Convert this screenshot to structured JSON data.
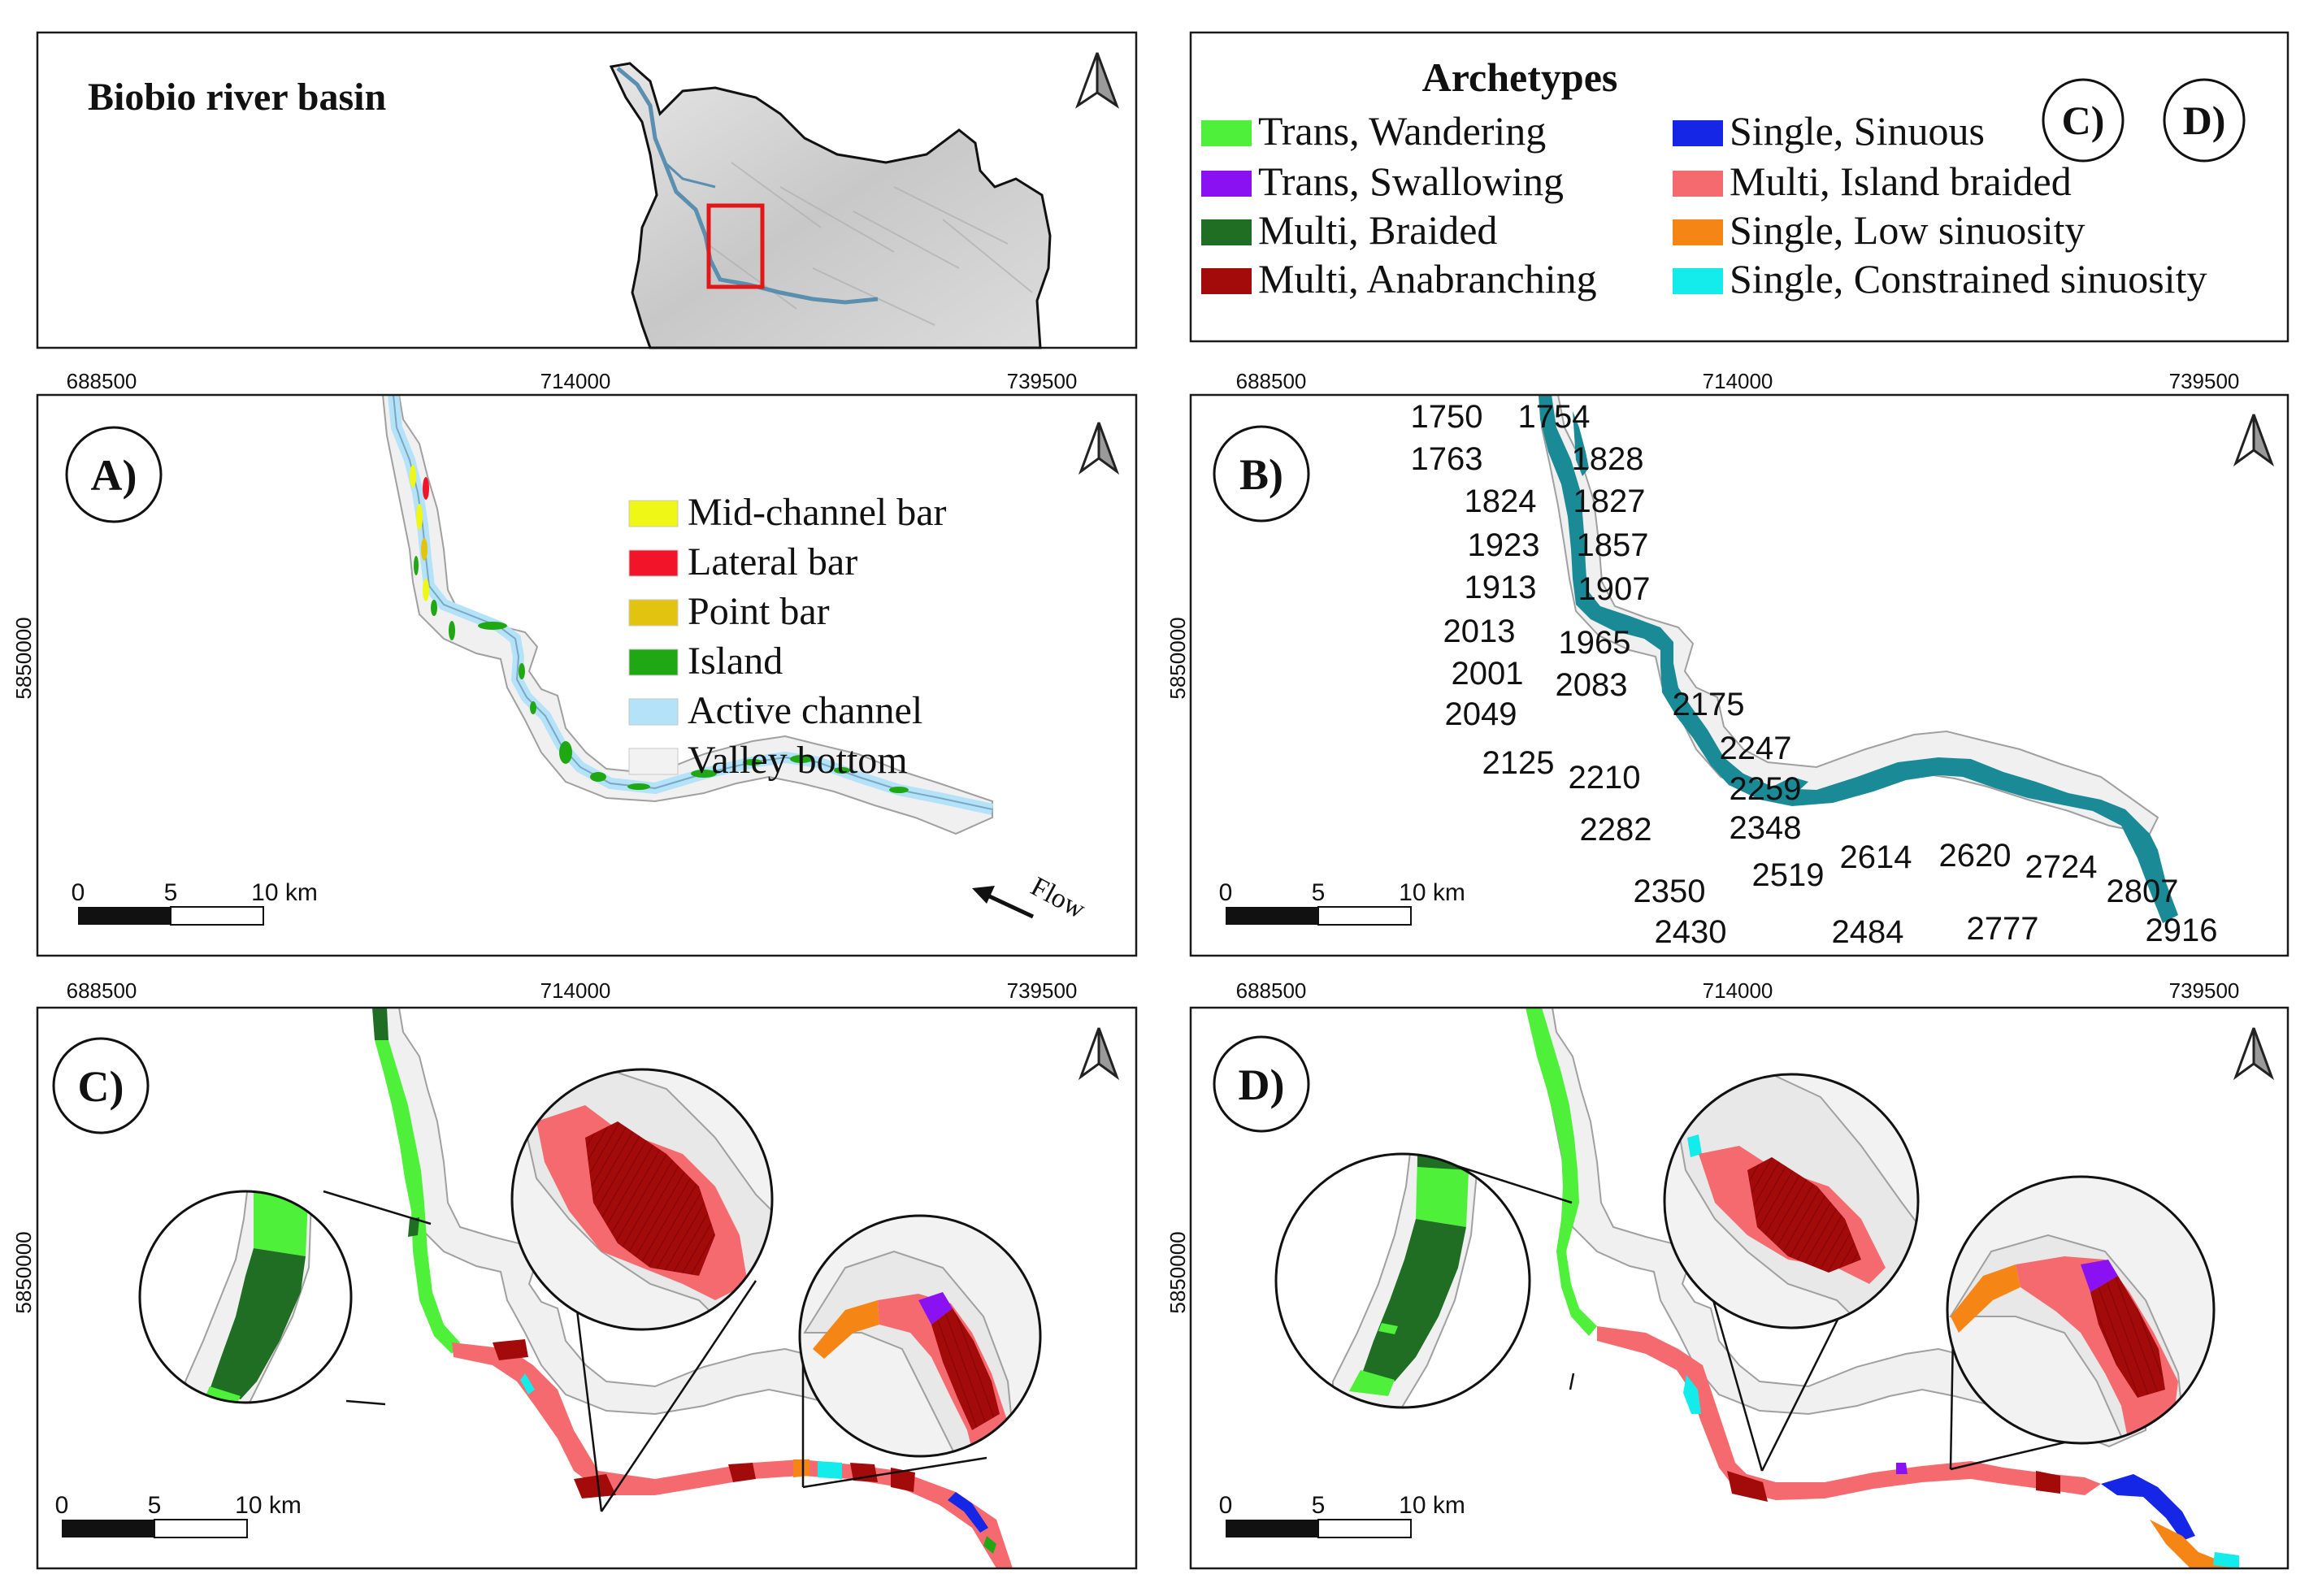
{
  "overview": {
    "title": "Biobio river basin"
  },
  "archetypes_legend": {
    "title": "Archetypes",
    "panel_refs": [
      "C)",
      "D)"
    ],
    "items": [
      {
        "label": "Trans, Wandering",
        "color": "#4ef03a"
      },
      {
        "label": "Trans, Swallowing",
        "color": "#8a12f2"
      },
      {
        "label": "Multi, Braided",
        "color": "#1f6e24"
      },
      {
        "label": "Multi, Anabranching",
        "color": "#a30a0a"
      },
      {
        "label": "Single, Sinuous",
        "color": "#1526e6"
      },
      {
        "label": "Multi, Island braided",
        "color": "#f56a6e"
      },
      {
        "label": "Single, Low sinuosity",
        "color": "#f58616"
      },
      {
        "label": "Single, Constrained sinuosity",
        "color": "#14ecec"
      }
    ]
  },
  "axes": {
    "x_ticks": [
      "688500",
      "714000",
      "739500"
    ],
    "y_tick": "5850000"
  },
  "scalebar": {
    "labels": [
      "0",
      "5",
      "10 km"
    ]
  },
  "panelA": {
    "label": "A)",
    "flow_label": "Flow",
    "legend": [
      {
        "label": "Mid-channel bar",
        "color": "#eef716"
      },
      {
        "label": "Lateral bar",
        "color": "#f2152a"
      },
      {
        "label": "Point bar",
        "color": "#e2c410"
      },
      {
        "label": "Island",
        "color": "#20a814"
      },
      {
        "label": "Active channel",
        "color": "#b4e2f8"
      },
      {
        "label": "Valley bottom",
        "color": "#f2f2f2"
      }
    ]
  },
  "panelB": {
    "label": "B)",
    "segment_ids": [
      "1750",
      "1754",
      "1763",
      "1828",
      "1824",
      "1827",
      "1923",
      "1857",
      "1913",
      "1907",
      "2013",
      "1965",
      "2001",
      "2083",
      "2175",
      "2049",
      "2247",
      "2125",
      "2210",
      "2259",
      "2282",
      "2348",
      "2614",
      "2620",
      "2724",
      "2519",
      "2350",
      "2807",
      "2430",
      "2484",
      "2777",
      "2916"
    ]
  },
  "panelC": {
    "label": "C)"
  },
  "panelD": {
    "label": "D)"
  },
  "colors": {
    "frame": "#1a1a1a",
    "valley": "#f0f0f0",
    "valley_edge": "#a0a0a0",
    "channel_teal": "#1a8a96",
    "basin_fill": "#d8d8d8",
    "highlight_box": "#e01818"
  }
}
